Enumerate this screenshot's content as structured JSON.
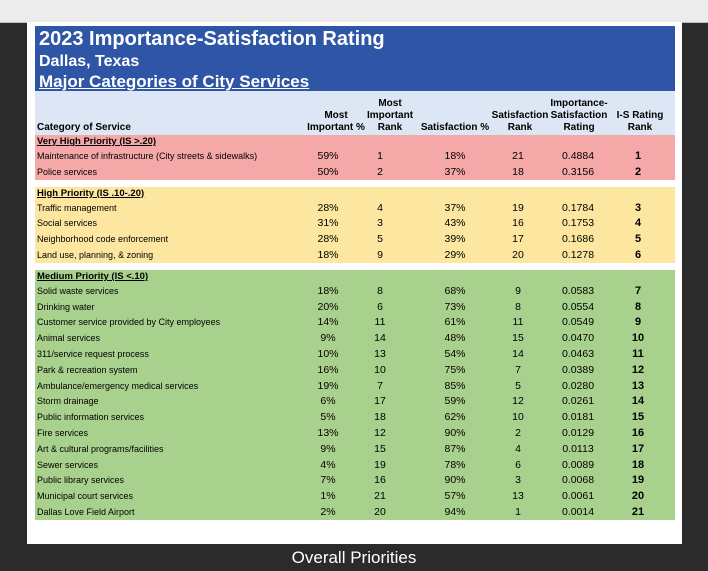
{
  "header": {
    "title": "2023 Importance-Satisfaction Rating",
    "subtitle": "Dallas, Texas",
    "section_title": "Major Categories of City Services"
  },
  "columns": {
    "category": "Category of Service",
    "most_important_pct_l1": "Most",
    "most_important_pct_l2": "Important %",
    "most_important_rank_l1": "Most",
    "most_important_rank_l2": "Important",
    "most_important_rank_l3": "Rank",
    "satisfaction_pct": "Satisfaction %",
    "satisfaction_rank_l1": "Satisfaction",
    "satisfaction_rank_l2": "Rank",
    "is_rating_l1": "Importance-",
    "is_rating_l2": "Satisfaction",
    "is_rating_l3": "Rating",
    "is_rank_l1": "I-S Rating",
    "is_rank_l2": "Rank"
  },
  "sections": [
    {
      "title": "Very High Priority (IS >.20)",
      "color": "#f4a9a8",
      "rows": [
        {
          "category": "Maintenance of infrastructure (City streets & sidewalks)",
          "mi_pct": "59%",
          "mi_rank": "1",
          "sat_pct": "18%",
          "sat_rank": "21",
          "is_rating": "0.4884",
          "is_rank": "1"
        },
        {
          "category": "Police services",
          "mi_pct": "50%",
          "mi_rank": "2",
          "sat_pct": "37%",
          "sat_rank": "18",
          "is_rating": "0.3156",
          "is_rank": "2"
        }
      ]
    },
    {
      "title": "High Priority (IS .10-.20)",
      "color": "#fde6a0",
      "rows": [
        {
          "category": "Traffic management",
          "mi_pct": "28%",
          "mi_rank": "4",
          "sat_pct": "37%",
          "sat_rank": "19",
          "is_rating": "0.1784",
          "is_rank": "3"
        },
        {
          "category": "Social services",
          "mi_pct": "31%",
          "mi_rank": "3",
          "sat_pct": "43%",
          "sat_rank": "16",
          "is_rating": "0.1753",
          "is_rank": "4"
        },
        {
          "category": "Neighborhood code enforcement",
          "mi_pct": "28%",
          "mi_rank": "5",
          "sat_pct": "39%",
          "sat_rank": "17",
          "is_rating": "0.1686",
          "is_rank": "5"
        },
        {
          "category": "Land use, planning, & zoning",
          "mi_pct": "18%",
          "mi_rank": "9",
          "sat_pct": "29%",
          "sat_rank": "20",
          "is_rating": "0.1278",
          "is_rank": "6"
        }
      ]
    },
    {
      "title": "Medium Priority (IS <.10)",
      "color": "#a9d18e",
      "rows": [
        {
          "category": "Solid waste services",
          "mi_pct": "18%",
          "mi_rank": "8",
          "sat_pct": "68%",
          "sat_rank": "9",
          "is_rating": "0.0583",
          "is_rank": "7"
        },
        {
          "category": "Drinking water",
          "mi_pct": "20%",
          "mi_rank": "6",
          "sat_pct": "73%",
          "sat_rank": "8",
          "is_rating": "0.0554",
          "is_rank": "8"
        },
        {
          "category": "Customer service provided by City employees",
          "mi_pct": "14%",
          "mi_rank": "11",
          "sat_pct": "61%",
          "sat_rank": "11",
          "is_rating": "0.0549",
          "is_rank": "9"
        },
        {
          "category": "Animal services",
          "mi_pct": "9%",
          "mi_rank": "14",
          "sat_pct": "48%",
          "sat_rank": "15",
          "is_rating": "0.0470",
          "is_rank": "10"
        },
        {
          "category": "311/service request process",
          "mi_pct": "10%",
          "mi_rank": "13",
          "sat_pct": "54%",
          "sat_rank": "14",
          "is_rating": "0.0463",
          "is_rank": "11"
        },
        {
          "category": "Park & recreation system",
          "mi_pct": "16%",
          "mi_rank": "10",
          "sat_pct": "75%",
          "sat_rank": "7",
          "is_rating": "0.0389",
          "is_rank": "12"
        },
        {
          "category": "Ambulance/emergency medical services",
          "mi_pct": "19%",
          "mi_rank": "7",
          "sat_pct": "85%",
          "sat_rank": "5",
          "is_rating": "0.0280",
          "is_rank": "13"
        },
        {
          "category": "Storm drainage",
          "mi_pct": "6%",
          "mi_rank": "17",
          "sat_pct": "59%",
          "sat_rank": "12",
          "is_rating": "0.0261",
          "is_rank": "14"
        },
        {
          "category": "Public information services",
          "mi_pct": "5%",
          "mi_rank": "18",
          "sat_pct": "62%",
          "sat_rank": "10",
          "is_rating": "0.0181",
          "is_rank": "15"
        },
        {
          "category": "Fire services",
          "mi_pct": "13%",
          "mi_rank": "12",
          "sat_pct": "90%",
          "sat_rank": "2",
          "is_rating": "0.0129",
          "is_rank": "16"
        },
        {
          "category": "Art & cultural programs/facilities",
          "mi_pct": "9%",
          "mi_rank": "15",
          "sat_pct": "87%",
          "sat_rank": "4",
          "is_rating": "0.0113",
          "is_rank": "17"
        },
        {
          "category": "Sewer services",
          "mi_pct": "4%",
          "mi_rank": "19",
          "sat_pct": "78%",
          "sat_rank": "6",
          "is_rating": "0.0089",
          "is_rank": "18"
        },
        {
          "category": "Public library services",
          "mi_pct": "7%",
          "mi_rank": "16",
          "sat_pct": "90%",
          "sat_rank": "3",
          "is_rating": "0.0068",
          "is_rank": "19"
        },
        {
          "category": "Municipal court services",
          "mi_pct": "1%",
          "mi_rank": "21",
          "sat_pct": "57%",
          "sat_rank": "13",
          "is_rating": "0.0061",
          "is_rank": "20"
        },
        {
          "category": "Dallas Love Field Airport",
          "mi_pct": "2%",
          "mi_rank": "20",
          "sat_pct": "94%",
          "sat_rank": "1",
          "is_rating": "0.0014",
          "is_rank": "21"
        }
      ]
    }
  ],
  "footer": {
    "caption": "Overall Priorities"
  }
}
